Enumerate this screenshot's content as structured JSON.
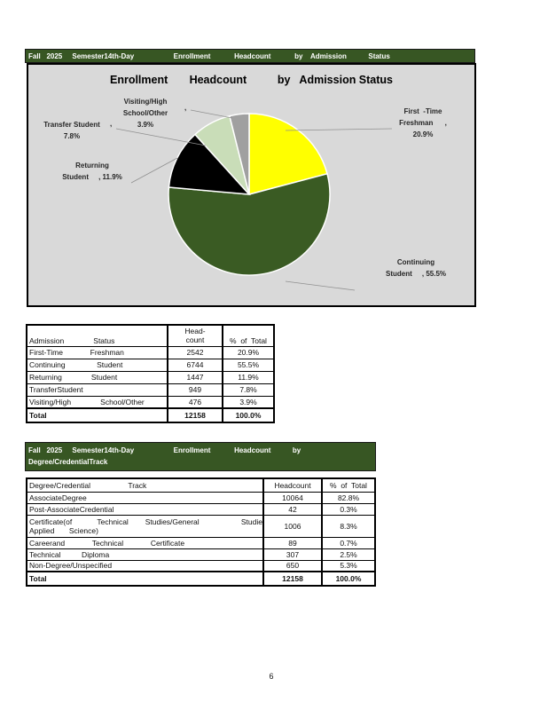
{
  "page": {
    "number": "6"
  },
  "section1": {
    "header_bar": "Fall   2025     Semester14th-Day                    Enrollment            Headcount            by    Admission           Status",
    "chart": {
      "title": "Enrollment       Headcount          by   Admission Status",
      "labels": {
        "visiting": "Visiting/High\nSchool/Other\n3.9%",
        "visiting_comma": ",",
        "transfer": "Transfer Student\n7.8%",
        "transfer_comma": ",",
        "returning": "Returning\nStudent     , 11.9%",
        "first_time": "First  -Time\nFreshman      ,\n20.9%",
        "continuing": "Continuing\nStudent     , 55.5%"
      }
    },
    "table": {
      "header": {
        "c1": "Admission              Status",
        "c2": "Head-\ncount",
        "c3": "%  of  Total"
      },
      "rows": [
        {
          "c1": "First-Time             Freshman",
          "c2": "2542",
          "c3": "20.9%"
        },
        {
          "c1": "Continuing               Student",
          "c2": "6744",
          "c3": "55.5%"
        },
        {
          "c1": "Returning              Student",
          "c2": "1447",
          "c3": "11.9%"
        },
        {
          "c1": "TransferStudent",
          "c2": "949",
          "c3": "7.8%"
        },
        {
          "c1": "Visiting/High              School/Other",
          "c2": "476",
          "c3": "3.9%"
        }
      ],
      "total": {
        "c1": "Total",
        "c2": "12158",
        "c3": "100.0%"
      }
    }
  },
  "section2": {
    "header_line1": "Fall   2025     Semester14th-Day                    Enrollment            Headcount           by",
    "header_line2": "Degree/CredentialTrack",
    "table": {
      "header": {
        "c1": "Degree/Credential                  Track",
        "c2": "Headcount",
        "c3": "%  of  Total"
      },
      "rows": [
        {
          "c1": "AssociateDegree",
          "c2": "10064",
          "c3": "82.8%"
        },
        {
          "c1": "Post-AssociateCredential",
          "c2": "42",
          "c3": "0.3%"
        },
        {
          "c1": "Certificate(of            Technical        Studies/General                    Studies/\nApplied       Science)",
          "c2": "1006",
          "c3": "8.3%"
        },
        {
          "c1": "Careerand             Technical             Certificate",
          "c2": "89",
          "c3": "0.7%"
        },
        {
          "c1": "Technical          Diploma",
          "c2": "307",
          "c3": "2.5%"
        },
        {
          "c1": "Non-Degree/Unspecified",
          "c2": "650",
          "c3": "5.3%"
        }
      ],
      "total": {
        "c1": "Total",
        "c2": "12158",
        "c3": "100.0%"
      }
    }
  },
  "chart_data": {
    "type": "pie",
    "title": "Enrollment Headcount by Admission Status",
    "categories": [
      "First-Time Freshman",
      "Continuing Student",
      "Returning Student",
      "Transfer Student",
      "Visiting/High School/Other"
    ],
    "values": [
      20.9,
      55.5,
      11.9,
      7.8,
      3.9
    ],
    "headcounts": [
      2542,
      6744,
      1447,
      949,
      476
    ],
    "total_headcount": 12158,
    "colors": [
      "#FFFF00",
      "#3A5B23",
      "#000000",
      "#C9DDB8",
      "#A0A0A0"
    ],
    "start_angle": 0,
    "direction": "clockwise",
    "legend": "none",
    "label_style": "category with percent, gray leader lines",
    "background": "#D9D9D9"
  }
}
